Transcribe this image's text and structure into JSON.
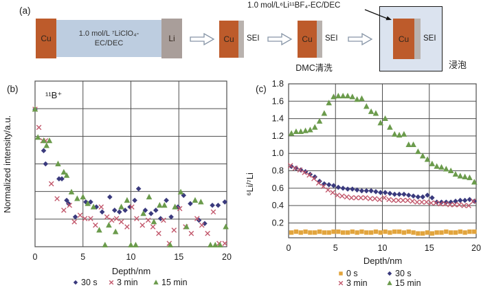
{
  "panel_a": {
    "label": "(a)",
    "cu": "Cu",
    "li": "Li",
    "sei": "SEI",
    "electrolyte_line1": "1.0 mol/L ⁷LiClO₄-",
    "electrolyte_line2": "EC/DEC",
    "annotation": "1.0 mol/L⁶Li¹¹BF₄-EC/DEC",
    "dmc_wash": "DMC清洗",
    "soak": "浸泡",
    "colors": {
      "cu": "#bd5b2b",
      "electrolyte": "#bdcde0",
      "li": "#a99e9a",
      "sei_strip": "#b9b2ae",
      "box_fill": "#dbe3ef",
      "box_border": "#1a1a1a",
      "arrow_outline": "#8694a6"
    }
  },
  "chart_data": [
    {
      "id": "b",
      "type": "scatter",
      "panel_label": "(b)",
      "annotation": "¹¹B⁺",
      "xlabel": "Depth/nm",
      "ylabel": "Normalized intensity/a.u.",
      "xlim": [
        0,
        20
      ],
      "ylim": [
        0,
        1
      ],
      "xticks": [
        0,
        5,
        10,
        15,
        20
      ],
      "yticks": [],
      "grid_x": [
        5,
        10,
        15
      ],
      "grid_y": [
        0.1667,
        0.3333,
        0.5,
        0.6667,
        0.8333
      ],
      "grid_color": "#4d4d4d",
      "legend_cols": 3,
      "series": [
        {
          "name": "30 s",
          "marker": "diamond",
          "color": "#3a3a7d",
          "x": [
            0,
            0.9,
            1.1,
            2.5,
            2.8,
            3.3,
            3.5,
            4.2,
            5.3,
            5.8,
            6.4,
            7.0,
            7.8,
            8.3,
            8.8,
            9.4,
            9.9,
            10.4,
            10.8,
            11.5,
            12.1,
            12.6,
            13.1,
            13.7,
            14.2,
            14.9,
            15.5,
            16.2,
            17.1,
            17.7,
            18.5,
            19.1,
            19.8
          ],
          "y": [
            0.83,
            0.58,
            0.5,
            0.41,
            0.41,
            0.28,
            0.26,
            0.18,
            0.27,
            0.27,
            0.24,
            0.21,
            0.3,
            0.22,
            0.21,
            0.22,
            0.24,
            0.28,
            0.35,
            0.22,
            0.2,
            0.22,
            0.17,
            0.28,
            0.18,
            0.24,
            0.31,
            0.26,
            0.16,
            0.14,
            0.25,
            0.25,
            0.27
          ]
        },
        {
          "name": "3 min",
          "marker": "cross",
          "color": "#c2576b",
          "x": [
            0,
            0.4,
            0.8,
            1.1,
            1.7,
            2.3,
            3.0,
            3.6,
            4.1,
            4.7,
            5.2,
            5.8,
            6.3,
            6.9,
            7.5,
            8.0,
            8.5,
            9.0,
            9.6,
            10.1,
            10.6,
            11.2,
            11.8,
            12.3,
            12.9,
            13.4,
            14.0,
            14.5,
            15.1,
            15.7,
            16.3,
            16.9,
            17.4,
            18.0,
            18.6,
            19.2,
            19.8
          ],
          "y": [
            0.83,
            0.72,
            0.64,
            0.64,
            0.38,
            0.29,
            0.22,
            0.25,
            0.15,
            0.19,
            0.17,
            0.17,
            0.13,
            0.24,
            0.18,
            0.16,
            0.17,
            0.15,
            0.12,
            0.24,
            0.17,
            0.13,
            0.16,
            0.12,
            0.08,
            0.16,
            0.02,
            0.1,
            0.23,
            0.12,
            0.08,
            0.17,
            0.13,
            0.08,
            0.21,
            0.02,
            0.02
          ]
        },
        {
          "name": "15 min",
          "marker": "triangle",
          "color": "#6b9b4c",
          "x": [
            0,
            0.3,
            0.9,
            1.2,
            1.5,
            2.4,
            3.0,
            3.3,
            3.8,
            4.4,
            5.0,
            5.5,
            6.1,
            6.7,
            7.3,
            7.7,
            8.4,
            9.0,
            9.6,
            10.0,
            10.5,
            11.3,
            11.9,
            12.4,
            13.0,
            13.5,
            14.1,
            14.6,
            15.2,
            15.8,
            16.7,
            17.3,
            18.3,
            18.8,
            19.3,
            19.9
          ],
          "y": [
            0.83,
            0.66,
            0.64,
            0.61,
            0.64,
            0.5,
            0.45,
            0.43,
            0.33,
            0.29,
            0.3,
            0.26,
            0.24,
            0.1,
            0.01,
            0.13,
            0.09,
            0.24,
            0.28,
            0.01,
            0.01,
            0.2,
            0.3,
            0.15,
            0.25,
            0.25,
            0.01,
            0.24,
            0.33,
            0.12,
            0.28,
            0.27,
            0.01,
            0.01,
            0.01,
            0.12
          ]
        }
      ]
    },
    {
      "id": "c",
      "type": "scatter",
      "panel_label": "(c)",
      "annotation": "",
      "xlabel": "Depth/nm",
      "ylabel": "⁶Li/⁷Li",
      "xlim": [
        0,
        20
      ],
      "ylim": [
        0.03,
        1.8
      ],
      "xticks": [
        0,
        5,
        10,
        15,
        20
      ],
      "yticks": [
        0.2,
        0.4,
        0.6,
        0.8,
        1.0,
        1.2,
        1.4,
        1.6,
        1.8
      ],
      "grid_x": [
        5,
        10,
        15
      ],
      "grid_y": [
        0.2,
        0.4,
        0.6,
        0.8,
        1.0,
        1.2,
        1.4,
        1.6
      ],
      "grid_color": "#4d4d4d",
      "legend_cols": 2,
      "series": [
        {
          "name": "0 s",
          "marker": "square",
          "color": "#e2a43c",
          "x": [
            0.3,
            0.8,
            1.3,
            1.8,
            2.3,
            2.8,
            3.3,
            3.8,
            4.3,
            4.8,
            5.3,
            5.8,
            6.3,
            6.8,
            7.3,
            7.8,
            8.3,
            8.8,
            9.3,
            9.8,
            10.3,
            10.8,
            11.3,
            11.8,
            12.3,
            12.8,
            13.3,
            13.8,
            14.3,
            14.8,
            15.3,
            15.8,
            16.3,
            16.8,
            17.3,
            17.8,
            18.3,
            18.8,
            19.3,
            19.8
          ],
          "y": [
            0.09,
            0.1,
            0.09,
            0.1,
            0.09,
            0.09,
            0.1,
            0.09,
            0.09,
            0.1,
            0.1,
            0.09,
            0.09,
            0.1,
            0.09,
            0.1,
            0.09,
            0.09,
            0.1,
            0.09,
            0.1,
            0.09,
            0.1,
            0.1,
            0.09,
            0.1,
            0.09,
            0.08,
            0.08,
            0.09,
            0.08,
            0.09,
            0.09,
            0.1,
            0.09,
            0.09,
            0.1,
            0.09,
            0.1,
            0.1
          ]
        },
        {
          "name": "30 s",
          "marker": "diamond",
          "color": "#3a3a7d",
          "x": [
            0.3,
            0.8,
            1.3,
            1.8,
            2.3,
            2.8,
            3.3,
            3.8,
            4.3,
            4.8,
            5.3,
            5.8,
            6.3,
            6.8,
            7.3,
            7.8,
            8.3,
            8.8,
            9.3,
            9.8,
            10.3,
            10.8,
            11.3,
            11.8,
            12.3,
            12.8,
            13.3,
            13.8,
            14.3,
            14.8,
            15.3,
            15.8,
            16.3,
            16.8,
            17.3,
            17.8,
            18.3,
            18.8,
            19.3,
            19.8
          ],
          "y": [
            0.85,
            0.83,
            0.81,
            0.79,
            0.76,
            0.73,
            0.68,
            0.65,
            0.64,
            0.63,
            0.61,
            0.6,
            0.59,
            0.59,
            0.58,
            0.57,
            0.57,
            0.57,
            0.56,
            0.55,
            0.55,
            0.54,
            0.53,
            0.53,
            0.53,
            0.52,
            0.51,
            0.5,
            0.5,
            0.52,
            0.49,
            0.44,
            0.44,
            0.44,
            0.44,
            0.45,
            0.46,
            0.46,
            0.47,
            0.45
          ]
        },
        {
          "name": "3 min",
          "marker": "cross",
          "color": "#c2576b",
          "x": [
            0.2,
            0.7,
            1.2,
            1.7,
            2.2,
            2.7,
            3.2,
            3.7,
            4.2,
            4.7,
            5.2,
            5.7,
            6.2,
            6.7,
            7.2,
            7.7,
            8.2,
            8.7,
            9.2,
            9.7,
            10.2,
            10.7,
            11.2,
            11.7,
            12.2,
            12.7,
            13.2,
            13.7,
            14.2,
            14.7,
            15.2,
            15.7,
            16.2,
            16.7,
            17.2,
            17.7,
            18.2,
            18.7,
            19.2,
            19.7
          ],
          "y": [
            0.86,
            0.83,
            0.81,
            0.78,
            0.75,
            0.71,
            0.66,
            0.62,
            0.58,
            0.55,
            0.52,
            0.51,
            0.5,
            0.49,
            0.49,
            0.49,
            0.49,
            0.48,
            0.48,
            0.47,
            0.49,
            0.47,
            0.46,
            0.46,
            0.46,
            0.46,
            0.45,
            0.44,
            0.44,
            0.44,
            0.43,
            0.43,
            0.42,
            0.42,
            0.41,
            0.41,
            0.41,
            0.4,
            0.4,
            0.45
          ]
        },
        {
          "name": "15 min",
          "marker": "triangle",
          "color": "#6b9b4c",
          "x": [
            0.3,
            0.8,
            1.3,
            1.8,
            2.3,
            2.8,
            3.3,
            3.8,
            4.3,
            4.8,
            5.3,
            5.8,
            6.3,
            6.8,
            7.3,
            7.8,
            8.3,
            8.8,
            9.3,
            9.8,
            10.3,
            10.8,
            11.3,
            11.8,
            12.3,
            12.8,
            13.3,
            13.8,
            14.3,
            14.8,
            15.3,
            15.8,
            16.3,
            16.8,
            17.3,
            17.8,
            18.3,
            18.8,
            19.3,
            19.8
          ],
          "y": [
            1.23,
            1.25,
            1.25,
            1.26,
            1.27,
            1.3,
            1.37,
            1.46,
            1.58,
            1.65,
            1.66,
            1.66,
            1.66,
            1.65,
            1.62,
            1.63,
            1.54,
            1.48,
            1.46,
            1.35,
            1.4,
            1.3,
            1.22,
            1.21,
            1.22,
            1.1,
            1.1,
            1.02,
            0.97,
            0.93,
            0.88,
            0.85,
            0.84,
            0.82,
            0.8,
            0.76,
            0.74,
            0.73,
            0.72,
            0.67
          ]
        }
      ]
    }
  ]
}
